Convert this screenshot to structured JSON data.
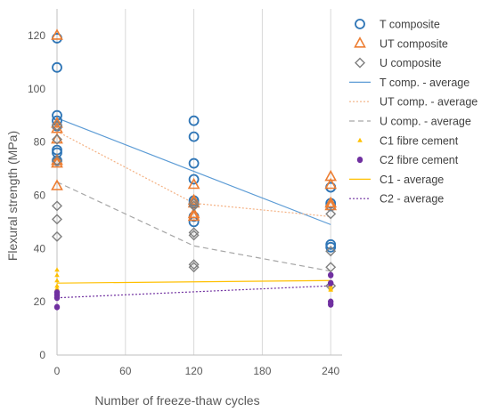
{
  "chart_data": {
    "type": "scatter",
    "title": "",
    "xlabel": "Number of freeze-thaw cycles",
    "ylabel": "Flexural strength (MPa)",
    "xlim": [
      0,
      250
    ],
    "ylim": [
      0,
      130
    ],
    "xticks": [
      0,
      60,
      120,
      180,
      240
    ],
    "yticks": [
      0,
      20,
      40,
      60,
      80,
      100,
      120
    ],
    "grid": "vertical",
    "legend_position": "right",
    "series": [
      {
        "name": "T composite",
        "kind": "points",
        "marker": "circle-open",
        "color": "#2E75B6",
        "x": [
          0,
          0,
          0,
          0,
          0,
          0,
          0,
          0,
          120,
          120,
          120,
          120,
          120,
          120,
          120,
          120,
          240,
          240,
          240,
          240,
          240,
          240
        ],
        "y": [
          119,
          108,
          90,
          88,
          86,
          77,
          76,
          73,
          88,
          82,
          72,
          66,
          58,
          57,
          50,
          52,
          63,
          63,
          57,
          56,
          41.5,
          40.5
        ]
      },
      {
        "name": "UT composite",
        "kind": "points",
        "marker": "triangle-open",
        "color": "#ED7D31",
        "x": [
          0,
          0,
          0,
          0,
          0,
          0,
          0,
          120,
          120,
          120,
          120,
          120,
          240,
          240,
          240,
          240
        ],
        "y": [
          120,
          87,
          85,
          81,
          73,
          72,
          63.5,
          64,
          58,
          57,
          53,
          52,
          67,
          64,
          57,
          56
        ]
      },
      {
        "name": "U composite",
        "kind": "points",
        "marker": "diamond-open",
        "color": "#7F7F7F",
        "x": [
          0,
          0,
          0,
          0,
          0,
          0,
          120,
          120,
          120,
          120,
          120,
          120,
          240,
          240,
          240,
          240
        ],
        "y": [
          86,
          81,
          73,
          56,
          51,
          44.5,
          57,
          56,
          46,
          45,
          34,
          33,
          53,
          39,
          33,
          26
        ]
      },
      {
        "name": "T comp. - average",
        "kind": "line",
        "style": "solid",
        "color": "#5B9BD5",
        "x": [
          0,
          120,
          240
        ],
        "y": [
          89,
          69,
          49
        ]
      },
      {
        "name": "UT comp. - average",
        "kind": "line",
        "style": "dotted",
        "color": "#F4B183",
        "x": [
          0,
          120,
          240
        ],
        "y": [
          84,
          57,
          52
        ]
      },
      {
        "name": "U comp. - average",
        "kind": "line",
        "style": "dashed",
        "color": "#A6A6A6",
        "x": [
          0,
          120,
          240
        ],
        "y": [
          65,
          41,
          31.5
        ]
      },
      {
        "name": "C1 fibre cement",
        "kind": "points",
        "marker": "triangle-filled",
        "color": "#FFC000",
        "x": [
          0,
          0,
          0,
          0,
          0,
          0,
          0,
          240,
          240,
          240
        ],
        "y": [
          32,
          30,
          28,
          26,
          25,
          23.5,
          22,
          26,
          25,
          24.5
        ]
      },
      {
        "name": "C2 fibre cement",
        "kind": "points",
        "marker": "circle-filled",
        "color": "#7030A0",
        "x": [
          0,
          0,
          0,
          0,
          240,
          240,
          240,
          240
        ],
        "y": [
          23.5,
          22.5,
          21.5,
          18,
          30,
          27,
          20,
          19
        ]
      },
      {
        "name": "C1 - average",
        "kind": "line",
        "style": "solid",
        "color": "#FFC000",
        "x": [
          0,
          240
        ],
        "y": [
          27,
          28
        ]
      },
      {
        "name": "C2 - average",
        "kind": "line",
        "style": "dotted",
        "color": "#7030A0",
        "x": [
          0,
          240
        ],
        "y": [
          21.5,
          26
        ]
      }
    ]
  }
}
